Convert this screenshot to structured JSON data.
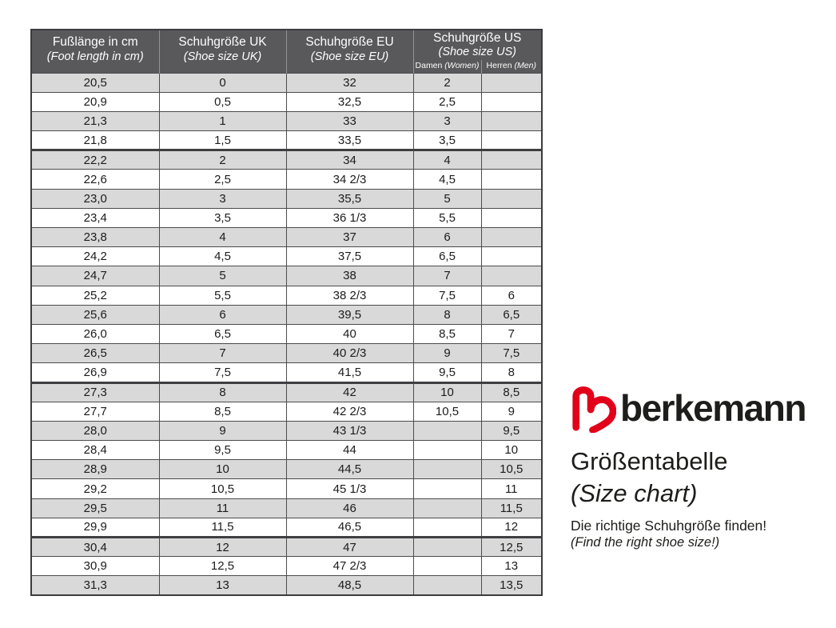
{
  "page": {
    "background": "#ffffff"
  },
  "table": {
    "colors": {
      "header_bg": "#59595b",
      "header_text": "#ffffff",
      "row_alt_bg": "#d9d9d9",
      "row_bg": "#ffffff",
      "border": "#4c4c4e",
      "text": "#1c1c1c"
    },
    "columns": [
      {
        "id": "cm",
        "title": "Fußlänge in cm",
        "subtitle": "(Foot length in cm)"
      },
      {
        "id": "uk",
        "title": "Schuhgröße UK",
        "subtitle": "(Shoe size UK)"
      },
      {
        "id": "eu",
        "title": "Schuhgröße EU",
        "subtitle": "(Shoe size EU)"
      },
      {
        "id": "us",
        "title": "Schuhgröße US",
        "subtitle": "(Shoe size US)",
        "sub_columns": [
          {
            "label": "Damen",
            "label_en": "(Women)"
          },
          {
            "label": "Herren",
            "label_en": "(Men)"
          }
        ]
      }
    ],
    "rows": [
      {
        "cm": "20,5",
        "uk": "0",
        "eu": "32",
        "us_women": "2",
        "us_men": ""
      },
      {
        "cm": "20,9",
        "uk": "0,5",
        "eu": "32,5",
        "us_women": "2,5",
        "us_men": ""
      },
      {
        "cm": "21,3",
        "uk": "1",
        "eu": "33",
        "us_women": "3",
        "us_men": ""
      },
      {
        "cm": "21,8",
        "uk": "1,5",
        "eu": "33,5",
        "us_women": "3,5",
        "us_men": ""
      },
      {
        "cm": "22,2",
        "uk": "2",
        "eu": "34",
        "us_women": "4",
        "us_men": "",
        "group_start": true
      },
      {
        "cm": "22,6",
        "uk": "2,5",
        "eu": "34 2/3",
        "us_women": "4,5",
        "us_men": ""
      },
      {
        "cm": "23,0",
        "uk": "3",
        "eu": "35,5",
        "us_women": "5",
        "us_men": ""
      },
      {
        "cm": "23,4",
        "uk": "3,5",
        "eu": "36 1/3",
        "us_women": "5,5",
        "us_men": ""
      },
      {
        "cm": "23,8",
        "uk": "4",
        "eu": "37",
        "us_women": "6",
        "us_men": ""
      },
      {
        "cm": "24,2",
        "uk": "4,5",
        "eu": "37,5",
        "us_women": "6,5",
        "us_men": ""
      },
      {
        "cm": "24,7",
        "uk": "5",
        "eu": "38",
        "us_women": "7",
        "us_men": ""
      },
      {
        "cm": "25,2",
        "uk": "5,5",
        "eu": "38 2/3",
        "us_women": "7,5",
        "us_men": "6"
      },
      {
        "cm": "25,6",
        "uk": "6",
        "eu": "39,5",
        "us_women": "8",
        "us_men": "6,5"
      },
      {
        "cm": "26,0",
        "uk": "6,5",
        "eu": "40",
        "us_women": "8,5",
        "us_men": "7"
      },
      {
        "cm": "26,5",
        "uk": "7",
        "eu": "40 2/3",
        "us_women": "9",
        "us_men": "7,5"
      },
      {
        "cm": "26,9",
        "uk": "7,5",
        "eu": "41,5",
        "us_women": "9,5",
        "us_men": "8"
      },
      {
        "cm": "27,3",
        "uk": "8",
        "eu": "42",
        "us_women": "10",
        "us_men": "8,5",
        "group_start": true
      },
      {
        "cm": "27,7",
        "uk": "8,5",
        "eu": "42 2/3",
        "us_women": "10,5",
        "us_men": "9"
      },
      {
        "cm": "28,0",
        "uk": "9",
        "eu": "43 1/3",
        "us_women": "",
        "us_men": "9,5"
      },
      {
        "cm": "28,4",
        "uk": "9,5",
        "eu": "44",
        "us_women": "",
        "us_men": "10"
      },
      {
        "cm": "28,9",
        "uk": "10",
        "eu": "44,5",
        "us_women": "",
        "us_men": "10,5"
      },
      {
        "cm": "29,2",
        "uk": "10,5",
        "eu": "45 1/3",
        "us_women": "",
        "us_men": "11"
      },
      {
        "cm": "29,5",
        "uk": "11",
        "eu": "46",
        "us_women": "",
        "us_men": "11,5"
      },
      {
        "cm": "29,9",
        "uk": "11,5",
        "eu": "46,5",
        "us_women": "",
        "us_men": "12"
      },
      {
        "cm": "30,4",
        "uk": "12",
        "eu": "47",
        "us_women": "",
        "us_men": "12,5",
        "group_start": true
      },
      {
        "cm": "30,9",
        "uk": "12,5",
        "eu": "47 2/3",
        "us_women": "",
        "us_men": "13"
      },
      {
        "cm": "31,3",
        "uk": "13",
        "eu": "48,5",
        "us_women": "",
        "us_men": "13,5"
      }
    ]
  },
  "branding": {
    "logo": "berkemann-logo",
    "logo_color": "#e2001a",
    "wordmark": "berkemann",
    "title": "Größentabelle",
    "title_en": "(Size chart)",
    "tagline": "Die richtige Schuhgröße finden!",
    "tagline_en": "(Find the right shoe size!)"
  }
}
